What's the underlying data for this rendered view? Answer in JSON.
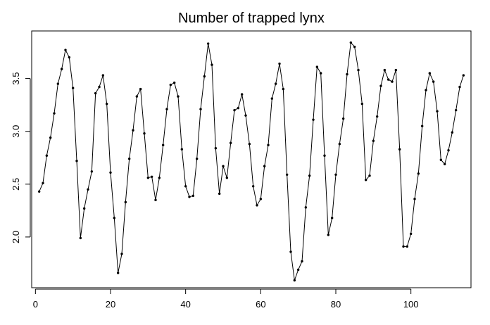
{
  "chart_data": {
    "type": "line",
    "title": "Number of trapped lynx",
    "xlabel": "",
    "ylabel": "",
    "xlim": [
      -1,
      116
    ],
    "ylim": [
      1.52,
      3.95
    ],
    "x_ticks": [
      0,
      20,
      40,
      60,
      80,
      100
    ],
    "y_ticks": [
      2.0,
      2.5,
      3.0,
      3.5
    ],
    "y_tick_labels": [
      "2.0",
      "2.5",
      "3.0",
      "3.5"
    ],
    "grid": false,
    "markers": true,
    "line_color": "#000000",
    "series": [
      {
        "x": [
          1,
          2,
          3,
          4,
          5,
          6,
          7,
          8,
          9,
          10,
          11,
          12,
          13,
          14,
          15,
          16,
          17,
          18,
          19,
          20,
          21,
          22,
          23,
          24,
          25,
          26,
          27,
          28,
          29,
          30,
          31,
          32,
          33,
          34,
          35,
          36,
          37,
          38,
          39,
          40,
          41,
          42,
          43,
          44,
          45,
          46,
          47,
          48,
          49,
          50,
          51,
          52,
          53,
          54,
          55,
          56,
          57,
          58,
          59,
          60,
          61,
          62,
          63,
          64,
          65,
          66,
          67,
          68,
          69,
          70,
          71,
          72,
          73,
          74,
          75,
          76,
          77,
          78,
          79,
          80,
          81,
          82,
          83,
          84,
          85,
          86,
          87,
          88,
          89,
          90,
          91,
          92,
          93,
          94,
          95,
          96,
          97,
          98,
          99,
          100,
          101,
          102,
          103,
          104,
          105,
          106,
          107,
          108,
          109,
          110,
          111,
          112,
          113,
          114
        ],
        "values": [
          2.43,
          2.51,
          2.77,
          2.94,
          3.17,
          3.45,
          3.59,
          3.77,
          3.7,
          3.41,
          2.72,
          1.99,
          2.27,
          2.45,
          2.62,
          3.36,
          3.42,
          3.53,
          3.26,
          2.61,
          2.18,
          1.66,
          1.84,
          2.33,
          2.74,
          3.01,
          3.33,
          3.4,
          2.98,
          2.56,
          2.57,
          2.35,
          2.56,
          2.87,
          3.21,
          3.44,
          3.46,
          3.33,
          2.83,
          2.48,
          2.38,
          2.39,
          2.74,
          3.21,
          3.52,
          3.83,
          3.63,
          2.84,
          2.41,
          2.67,
          2.56,
          2.89,
          3.2,
          3.22,
          3.35,
          3.15,
          2.88,
          2.48,
          2.3,
          2.36,
          2.67,
          2.87,
          3.31,
          3.45,
          3.64,
          3.4,
          2.59,
          1.86,
          1.59,
          1.69,
          1.77,
          2.28,
          2.58,
          3.11,
          3.61,
          3.55,
          2.77,
          2.02,
          2.18,
          2.59,
          2.88,
          3.12,
          3.54,
          3.84,
          3.8,
          3.58,
          3.26,
          2.54,
          2.58,
          2.91,
          3.14,
          3.43,
          3.58,
          3.49,
          3.47,
          3.58,
          2.83,
          1.91,
          1.91,
          2.03,
          2.36,
          2.6,
          3.05,
          3.39,
          3.55,
          3.47,
          3.19,
          2.73,
          2.69,
          2.82,
          2.99,
          3.2,
          3.42,
          3.53
        ]
      }
    ]
  }
}
